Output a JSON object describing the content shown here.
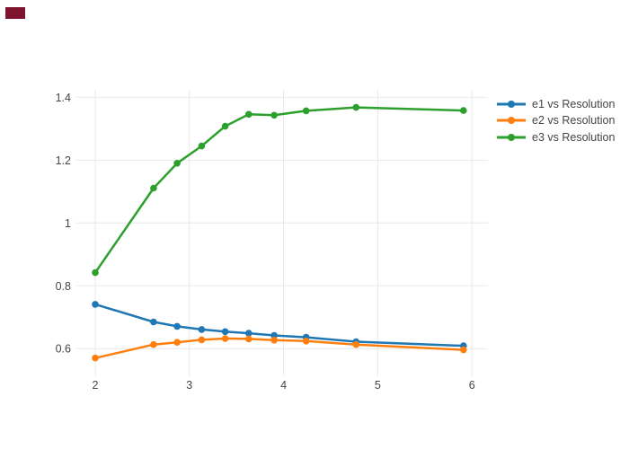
{
  "app": {
    "background": "#ffffff"
  },
  "corner_marker": {
    "color": "#7d132e"
  },
  "chart_data": {
    "type": "line",
    "mode": "lines+markers",
    "title": "",
    "xlabel": "",
    "ylabel": "",
    "x": [
      2.0,
      2.62,
      2.87,
      3.13,
      3.38,
      3.63,
      3.9,
      4.24,
      4.77,
      5.91
    ],
    "series": [
      {
        "name": "e1 vs Resolution",
        "color": "#1f77b4",
        "values": [
          0.741,
          0.685,
          0.671,
          0.661,
          0.654,
          0.649,
          0.642,
          0.636,
          0.622,
          0.609
        ]
      },
      {
        "name": "e2 vs Resolution",
        "color": "#ff7f0e",
        "values": [
          0.57,
          0.613,
          0.62,
          0.628,
          0.632,
          0.631,
          0.627,
          0.624,
          0.613,
          0.596
        ]
      },
      {
        "name": "e3 vs Resolution",
        "color": "#2ca02c",
        "values": [
          0.842,
          1.111,
          1.19,
          1.245,
          1.308,
          1.346,
          1.343,
          1.357,
          1.368,
          1.358
        ]
      }
    ],
    "x_ticks": [
      "2",
      "3",
      "4",
      "5",
      "6"
    ],
    "y_ticks": [
      "0.6",
      "0.8",
      "1",
      "1.2",
      "1.4"
    ],
    "x_range": [
      1.8,
      6.17
    ],
    "y_range": [
      0.512,
      1.424
    ],
    "grid": true,
    "grid_color": "#e8e8e8",
    "axis_text_color": "#444444",
    "legend_position": "right"
  }
}
